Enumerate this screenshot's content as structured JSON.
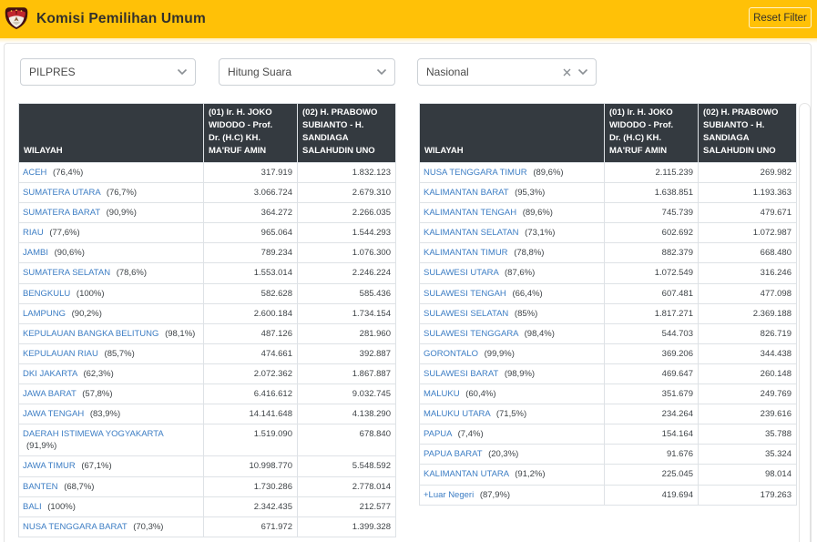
{
  "header": {
    "title": "Komisi Pemilihan Umum",
    "reset_button_label": "Reset Filter",
    "background_color": "#ffc107"
  },
  "filters": {
    "election_type": {
      "value": "PILPRES"
    },
    "count_mode": {
      "value": "Hitung Suara"
    },
    "region_scope": {
      "value": "Nasional",
      "clearable": true
    }
  },
  "table": {
    "columns": [
      {
        "label": "WILAYAH"
      },
      {
        "label": "(01) Ir. H. JOKO\nWIDODO - Prof.\nDr. (H.C) KH.\nMA'RUF AMIN"
      },
      {
        "label": "(02) H. PRABOWO\nSUBIANTO - H.\nSANDIAGA\nSALAHUDIN UNO"
      }
    ],
    "header_bg": "#343a40",
    "link_color": "#3c7dc4"
  },
  "tables": {
    "left": {
      "rows": [
        {
          "region": "ACEH",
          "progress": "(76,4%)",
          "votes_01": "317.919",
          "votes_02": "1.832.123"
        },
        {
          "region": "SUMATERA UTARA",
          "progress": "(76,7%)",
          "votes_01": "3.066.724",
          "votes_02": "2.679.310"
        },
        {
          "region": "SUMATERA BARAT",
          "progress": "(90,9%)",
          "votes_01": "364.272",
          "votes_02": "2.266.035"
        },
        {
          "region": "RIAU",
          "progress": "(77,6%)",
          "votes_01": "965.064",
          "votes_02": "1.544.293"
        },
        {
          "region": "JAMBI",
          "progress": "(90,6%)",
          "votes_01": "789.234",
          "votes_02": "1.076.300"
        },
        {
          "region": "SUMATERA SELATAN",
          "progress": "(78,6%)",
          "votes_01": "1.553.014",
          "votes_02": "2.246.224"
        },
        {
          "region": "BENGKULU",
          "progress": "(100%)",
          "votes_01": "582.628",
          "votes_02": "585.436"
        },
        {
          "region": "LAMPUNG",
          "progress": "(90,2%)",
          "votes_01": "2.600.184",
          "votes_02": "1.734.154"
        },
        {
          "region": "KEPULAUAN BANGKA BELITUNG",
          "progress": "(98,1%)",
          "votes_01": "487.126",
          "votes_02": "281.960"
        },
        {
          "region": "KEPULAUAN RIAU",
          "progress": "(85,7%)",
          "votes_01": "474.661",
          "votes_02": "392.887"
        },
        {
          "region": "DKI JAKARTA",
          "progress": "(62,3%)",
          "votes_01": "2.072.362",
          "votes_02": "1.867.887"
        },
        {
          "region": "JAWA BARAT",
          "progress": "(57,8%)",
          "votes_01": "6.416.612",
          "votes_02": "9.032.745"
        },
        {
          "region": "JAWA TENGAH",
          "progress": "(83,9%)",
          "votes_01": "14.141.648",
          "votes_02": "4.138.290"
        },
        {
          "region": "DAERAH ISTIMEWA YOGYAKARTA",
          "progress": "(91,9%)",
          "votes_01": "1.519.090",
          "votes_02": "678.840"
        },
        {
          "region": "JAWA TIMUR",
          "progress": "(67,1%)",
          "votes_01": "10.998.770",
          "votes_02": "5.548.592"
        },
        {
          "region": "BANTEN",
          "progress": "(68,7%)",
          "votes_01": "1.730.286",
          "votes_02": "2.778.014"
        },
        {
          "region": "BALI",
          "progress": "(100%)",
          "votes_01": "2.342.435",
          "votes_02": "212.577"
        },
        {
          "region": "NUSA TENGGARA BARAT",
          "progress": "(70,3%)",
          "votes_01": "671.972",
          "votes_02": "1.399.328"
        }
      ]
    },
    "right": {
      "rows": [
        {
          "region": "NUSA TENGGARA TIMUR",
          "progress": "(89,6%)",
          "votes_01": "2.115.239",
          "votes_02": "269.982"
        },
        {
          "region": "KALIMANTAN BARAT",
          "progress": "(95,3%)",
          "votes_01": "1.638.851",
          "votes_02": "1.193.363"
        },
        {
          "region": "KALIMANTAN TENGAH",
          "progress": "(89,6%)",
          "votes_01": "745.739",
          "votes_02": "479.671"
        },
        {
          "region": "KALIMANTAN SELATAN",
          "progress": "(73,1%)",
          "votes_01": "602.692",
          "votes_02": "1.072.987"
        },
        {
          "region": "KALIMANTAN TIMUR",
          "progress": "(78,8%)",
          "votes_01": "882.379",
          "votes_02": "668.480"
        },
        {
          "region": "SULAWESI UTARA",
          "progress": "(87,6%)",
          "votes_01": "1.072.549",
          "votes_02": "316.246"
        },
        {
          "region": "SULAWESI TENGAH",
          "progress": "(66,4%)",
          "votes_01": "607.481",
          "votes_02": "477.098"
        },
        {
          "region": "SULAWESI SELATAN",
          "progress": "(85%)",
          "votes_01": "1.817.271",
          "votes_02": "2.369.188"
        },
        {
          "region": "SULAWESI TENGGARA",
          "progress": "(98,4%)",
          "votes_01": "544.703",
          "votes_02": "826.719"
        },
        {
          "region": "GORONTALO",
          "progress": "(99,9%)",
          "votes_01": "369.206",
          "votes_02": "344.438"
        },
        {
          "region": "SULAWESI BARAT",
          "progress": "(98,9%)",
          "votes_01": "469.647",
          "votes_02": "260.148"
        },
        {
          "region": "MALUKU",
          "progress": "(60,4%)",
          "votes_01": "351.679",
          "votes_02": "249.769"
        },
        {
          "region": "MALUKU UTARA",
          "progress": "(71,5%)",
          "votes_01": "234.264",
          "votes_02": "239.616"
        },
        {
          "region": "PAPUA",
          "progress": "(7,4%)",
          "votes_01": "154.164",
          "votes_02": "35.788"
        },
        {
          "region": "PAPUA BARAT",
          "progress": "(20,3%)",
          "votes_01": "91.676",
          "votes_02": "35.324"
        },
        {
          "region": "KALIMANTAN UTARA",
          "progress": "(91,2%)",
          "votes_01": "225.045",
          "votes_02": "98.014"
        },
        {
          "region": "+Luar Negeri",
          "progress": "(87,9%)",
          "votes_01": "419.694",
          "votes_02": "179.263"
        }
      ]
    }
  }
}
